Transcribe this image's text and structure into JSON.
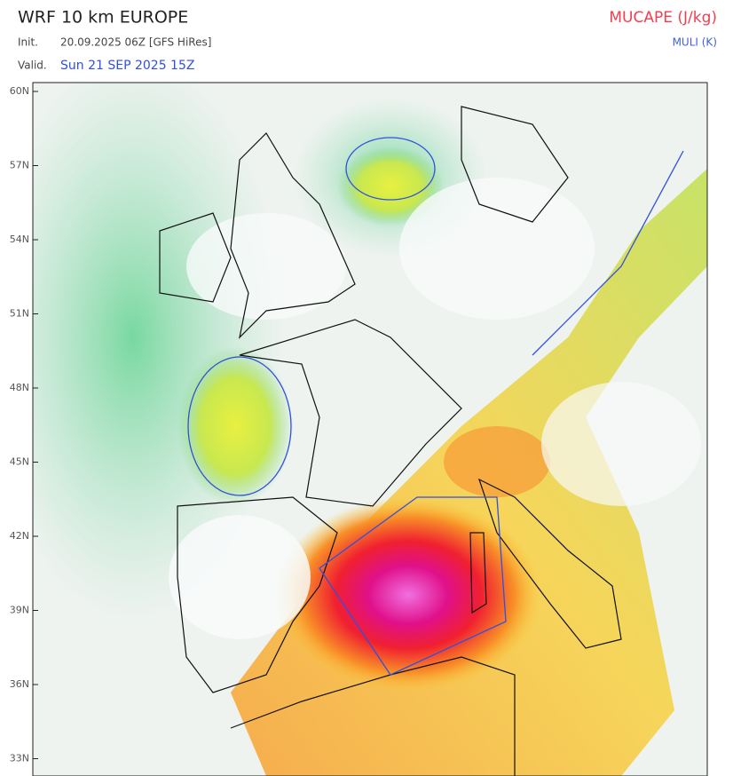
{
  "header": {
    "title": "WRF 10 km EUROPE",
    "init_label": "Init.",
    "init_value": "20.09.2025 06Z [GFS HiRes]",
    "valid_label": "Valid.",
    "valid_value": "Sun 21 SEP 2025 15Z"
  },
  "legend": {
    "primary": "MUCAPE (J/kg)",
    "secondary": "MULI (K)"
  },
  "map": {
    "lat_labels": [
      "60N",
      "57N",
      "54N",
      "51N",
      "48N",
      "45N",
      "42N",
      "39N",
      "36N",
      "33N"
    ]
  }
}
